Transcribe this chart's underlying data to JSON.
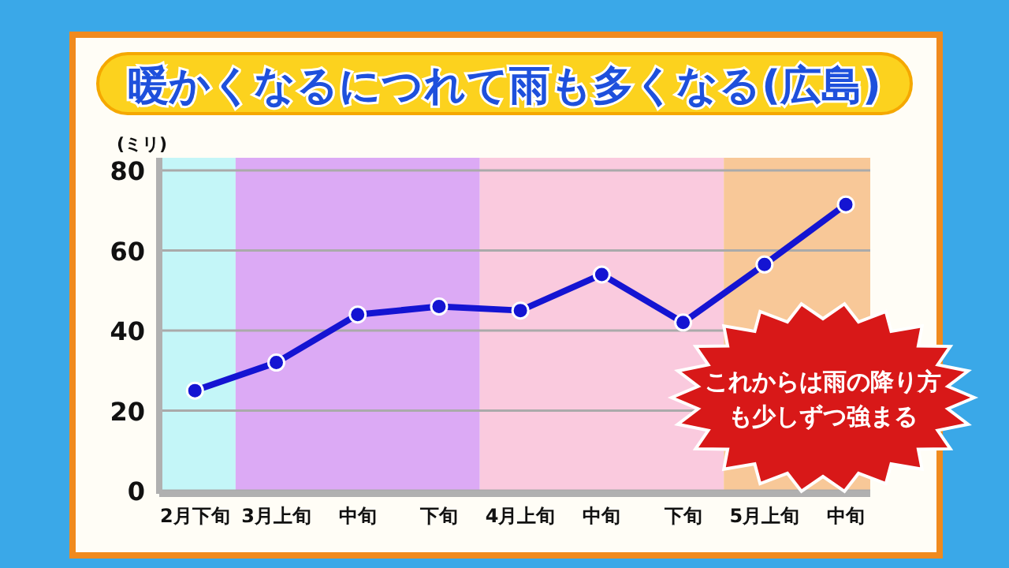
{
  "chart_data": {
    "type": "line",
    "title": "暖かくなるにつれて雨も多くなる(広島)",
    "ylabel": "(ミリ)",
    "categories": [
      "2月下旬",
      "3月上旬",
      "中旬",
      "下旬",
      "4月上旬",
      "中旬",
      "下旬",
      "5月上旬",
      "中旬"
    ],
    "series": [
      {
        "color": "#1414d2",
        "values": [
          25,
          32,
          44,
          46,
          45,
          54,
          42,
          56.5,
          71.5
        ]
      }
    ],
    "ylim": [
      0,
      80
    ],
    "yticks": [
      0,
      20,
      40,
      60,
      80
    ],
    "bands": [
      {
        "axis": "x",
        "from": "2月下旬",
        "to": "2月下旬",
        "color": "#c4f6f8"
      },
      {
        "axis": "x",
        "from": "3月上旬",
        "to": "下旬",
        "color": "#dcaaf5"
      }
    ],
    "annotations": [
      "これからは雨の降り方も少しずつ強まる"
    ],
    "grid": "y",
    "marker": "circle",
    "line_style": "solid"
  }
}
